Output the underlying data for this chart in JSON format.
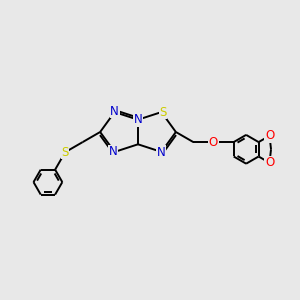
{
  "background_color": "#e8e8e8",
  "atom_colors": {
    "C": "#000000",
    "N": "#0000cc",
    "S": "#cccc00",
    "O": "#ff0000"
  },
  "bond_color": "#000000",
  "bond_width": 1.4,
  "font_size_atoms": 8.5,
  "figsize": [
    3.0,
    3.0
  ],
  "dpi": 100
}
